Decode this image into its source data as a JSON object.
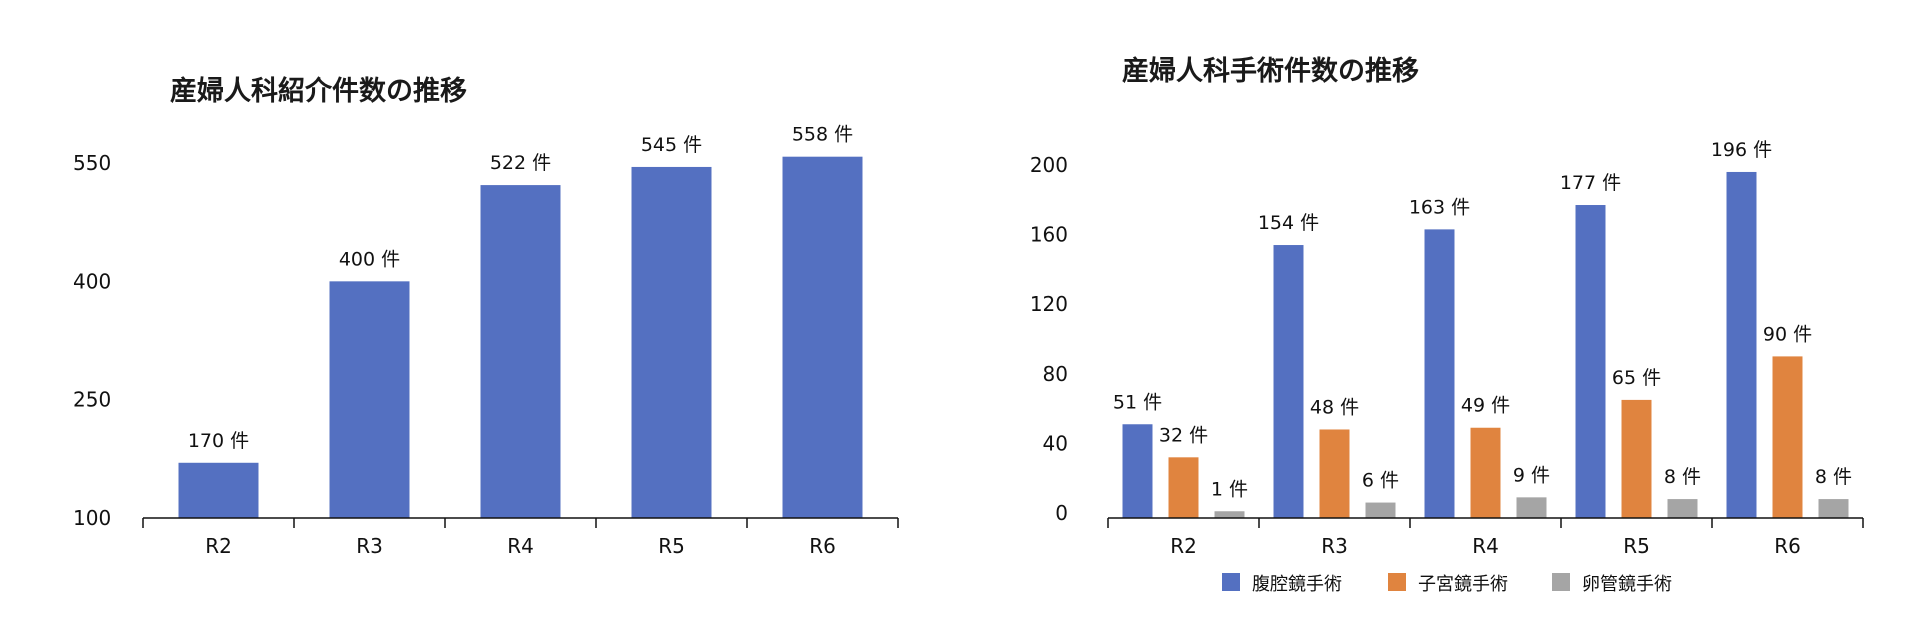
{
  "chart_data": [
    {
      "type": "bar",
      "title": "産婦人科紹介件数の推移",
      "xlabel": "",
      "ylabel": "",
      "categories": [
        "R2",
        "R3",
        "R4",
        "R5",
        "R6"
      ],
      "values": [
        170,
        400,
        522,
        545,
        558
      ],
      "data_labels": [
        "170 件",
        "400 件",
        "522 件",
        "545 件",
        "558 件"
      ],
      "yticks": [
        "100",
        "250",
        "400",
        "550"
      ],
      "ylim": [
        100,
        550
      ],
      "color": "#5470c1",
      "grid": false,
      "legend": "none"
    },
    {
      "type": "bar",
      "title": "産婦人科手術件数の推移",
      "xlabel": "",
      "ylabel": "",
      "categories": [
        "R2",
        "R3",
        "R4",
        "R5",
        "R6"
      ],
      "series": [
        {
          "name": "腹腔鏡手術",
          "color": "#5470c1",
          "values": [
            51,
            154,
            163,
            177,
            196
          ],
          "data_labels": [
            "51 件",
            "154 件",
            "163 件",
            "177 件",
            "196 件"
          ]
        },
        {
          "name": "子宮鏡手術",
          "color": "#e0843f",
          "values": [
            32,
            48,
            49,
            65,
            90
          ],
          "data_labels": [
            "32 件",
            "48 件",
            "49 件",
            "65 件",
            "90 件"
          ]
        },
        {
          "name": "卵管鏡手術",
          "color": "#a5a5a5",
          "values": [
            1,
            6,
            9,
            8,
            8
          ],
          "data_labels": [
            "1 件",
            "6 件",
            "9 件",
            "8 件",
            "8 件"
          ]
        }
      ],
      "yticks": [
        "0",
        "40",
        "80",
        "120",
        "160",
        "200"
      ],
      "ylim": [
        0,
        200
      ],
      "grid": false,
      "legend": "bottom"
    }
  ]
}
